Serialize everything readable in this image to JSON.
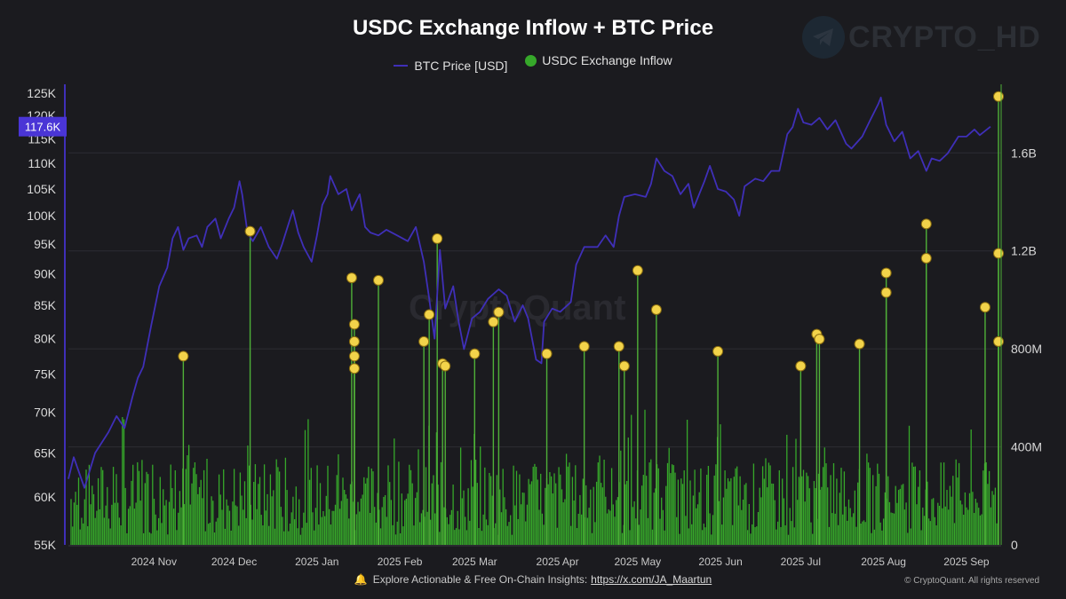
{
  "title": "USDC Exchange Inflow + BTC Price",
  "legend": {
    "btc_label": "BTC Price [USD]",
    "inflow_label": "USDC Exchange Inflow"
  },
  "watermark_text": "CRYPTO_HD",
  "cq_watermark": "CryptoQuant",
  "footer": {
    "text": "Explore Actionable & Free On-Chain Insights:",
    "link": "https://x.com/JA_Maartun",
    "copyright": "© CryptoQuant. All rights reserved"
  },
  "colors": {
    "btc_line": "#3f2fb8",
    "inflow_bars": "#36a82a",
    "highlight_dots": "#f2d34a",
    "current_price_badge": "#4a35d6"
  },
  "chart_data": {
    "type": "line",
    "x_axis": {
      "type": "date",
      "range": [
        "2024-10-14",
        "2025-09-28"
      ],
      "ticks": [
        "2024 Nov",
        "2024 Dec",
        "2025 Jan",
        "2025 Feb",
        "2025 Mar",
        "2025 Apr",
        "2025 May",
        "2025 Jun",
        "2025 Jul",
        "2025 Aug",
        "2025 Sep"
      ]
    },
    "y_left": {
      "label": "",
      "scale": "log",
      "range": [
        55000,
        127000
      ],
      "ticks": [
        "125K",
        "120K",
        "115K",
        "110K",
        "105K",
        "100K",
        "95K",
        "90K",
        "85K",
        "80K",
        "75K",
        "70K",
        "65K",
        "60K",
        "55K"
      ],
      "current_value_label": "117.6K"
    },
    "y_right": {
      "label": "",
      "range": [
        0,
        1.88
      ],
      "unit": "B",
      "ticks": [
        "1.6B",
        "1.2B",
        "800M",
        "400M",
        "0"
      ]
    },
    "series": [
      {
        "name": "BTC Price [USD]",
        "axis": "left",
        "points": [
          [
            "2024-10-14",
            62000
          ],
          [
            "2024-10-16",
            64500
          ],
          [
            "2024-10-20",
            61000
          ],
          [
            "2024-10-24",
            65000
          ],
          [
            "2024-10-29",
            67500
          ],
          [
            "2024-11-01",
            69500
          ],
          [
            "2024-11-04",
            68000
          ],
          [
            "2024-11-07",
            72000
          ],
          [
            "2024-11-09",
            74500
          ],
          [
            "2024-11-11",
            76000
          ],
          [
            "2024-11-14",
            82000
          ],
          [
            "2024-11-17",
            88000
          ],
          [
            "2024-11-20",
            91000
          ],
          [
            "2024-11-22",
            96000
          ],
          [
            "2024-11-24",
            98000
          ],
          [
            "2024-11-26",
            94000
          ],
          [
            "2024-11-28",
            96000
          ],
          [
            "2024-12-01",
            96500
          ],
          [
            "2024-12-03",
            94500
          ],
          [
            "2024-12-05",
            98000
          ],
          [
            "2024-12-08",
            99500
          ],
          [
            "2024-12-10",
            96000
          ],
          [
            "2024-12-13",
            99500
          ],
          [
            "2024-12-15",
            101500
          ],
          [
            "2024-12-17",
            106500
          ],
          [
            "2024-12-18",
            104000
          ],
          [
            "2024-12-20",
            97000
          ],
          [
            "2024-12-22",
            95500
          ],
          [
            "2024-12-25",
            98000
          ],
          [
            "2024-12-28",
            94500
          ],
          [
            "2024-12-31",
            92500
          ],
          [
            "2025-01-02",
            95000
          ],
          [
            "2025-01-04",
            98000
          ],
          [
            "2025-01-06",
            101000
          ],
          [
            "2025-01-08",
            97000
          ],
          [
            "2025-01-10",
            94500
          ],
          [
            "2025-01-13",
            92000
          ],
          [
            "2025-01-15",
            96500
          ],
          [
            "2025-01-17",
            102000
          ],
          [
            "2025-01-19",
            104000
          ],
          [
            "2025-01-20",
            107500
          ],
          [
            "2025-01-23",
            104000
          ],
          [
            "2025-01-26",
            105000
          ],
          [
            "2025-01-28",
            101000
          ],
          [
            "2025-01-31",
            104000
          ],
          [
            "2025-02-02",
            98000
          ],
          [
            "2025-02-04",
            97000
          ],
          [
            "2025-02-07",
            96500
          ],
          [
            "2025-02-10",
            97500
          ],
          [
            "2025-02-14",
            96500
          ],
          [
            "2025-02-18",
            95500
          ],
          [
            "2025-02-21",
            98000
          ],
          [
            "2025-02-24",
            92000
          ],
          [
            "2025-02-26",
            86000
          ],
          [
            "2025-02-28",
            80000
          ],
          [
            "2025-03-02",
            94000
          ],
          [
            "2025-03-04",
            84500
          ],
          [
            "2025-03-07",
            88000
          ],
          [
            "2025-03-09",
            82500
          ],
          [
            "2025-03-11",
            78500
          ],
          [
            "2025-03-14",
            83000
          ],
          [
            "2025-03-17",
            84000
          ],
          [
            "2025-03-20",
            86000
          ],
          [
            "2025-03-24",
            87500
          ],
          [
            "2025-03-27",
            86500
          ],
          [
            "2025-03-30",
            82500
          ],
          [
            "2025-04-02",
            85000
          ],
          [
            "2025-04-04",
            83000
          ],
          [
            "2025-04-07",
            77000
          ],
          [
            "2025-04-09",
            76500
          ],
          [
            "2025-04-10",
            82500
          ],
          [
            "2025-04-13",
            84500
          ],
          [
            "2025-04-16",
            84000
          ],
          [
            "2025-04-20",
            85500
          ],
          [
            "2025-04-22",
            91500
          ],
          [
            "2025-04-25",
            94500
          ],
          [
            "2025-04-30",
            94500
          ],
          [
            "2025-05-03",
            96500
          ],
          [
            "2025-05-06",
            94500
          ],
          [
            "2025-05-08",
            100000
          ],
          [
            "2025-05-10",
            103500
          ],
          [
            "2025-05-14",
            104000
          ],
          [
            "2025-05-18",
            103500
          ],
          [
            "2025-05-20",
            106000
          ],
          [
            "2025-05-22",
            111000
          ],
          [
            "2025-05-25",
            108500
          ],
          [
            "2025-05-28",
            107500
          ],
          [
            "2025-05-31",
            104000
          ],
          [
            "2025-06-03",
            106000
          ],
          [
            "2025-06-05",
            101500
          ],
          [
            "2025-06-09",
            106500
          ],
          [
            "2025-06-11",
            109500
          ],
          [
            "2025-06-14",
            105000
          ],
          [
            "2025-06-17",
            104500
          ],
          [
            "2025-06-20",
            103000
          ],
          [
            "2025-06-22",
            100000
          ],
          [
            "2025-06-24",
            105500
          ],
          [
            "2025-06-28",
            107000
          ],
          [
            "2025-07-01",
            106500
          ],
          [
            "2025-07-04",
            108500
          ],
          [
            "2025-07-07",
            108500
          ],
          [
            "2025-07-10",
            116000
          ],
          [
            "2025-07-12",
            117500
          ],
          [
            "2025-07-14",
            121500
          ],
          [
            "2025-07-16",
            118500
          ],
          [
            "2025-07-19",
            118000
          ],
          [
            "2025-07-22",
            119500
          ],
          [
            "2025-07-25",
            117000
          ],
          [
            "2025-07-28",
            119000
          ],
          [
            "2025-08-01",
            114000
          ],
          [
            "2025-08-03",
            113000
          ],
          [
            "2025-08-07",
            115500
          ],
          [
            "2025-08-10",
            119000
          ],
          [
            "2025-08-13",
            122500
          ],
          [
            "2025-08-14",
            124000
          ],
          [
            "2025-08-16",
            118000
          ],
          [
            "2025-08-19",
            114500
          ],
          [
            "2025-08-22",
            116500
          ],
          [
            "2025-08-25",
            111000
          ],
          [
            "2025-08-28",
            112500
          ],
          [
            "2025-08-31",
            108500
          ],
          [
            "2025-09-02",
            111000
          ],
          [
            "2025-09-05",
            110500
          ],
          [
            "2025-09-08",
            112000
          ],
          [
            "2025-09-12",
            115500
          ],
          [
            "2025-09-15",
            115500
          ],
          [
            "2025-09-18",
            117000
          ],
          [
            "2025-09-20",
            115800
          ],
          [
            "2025-09-24",
            117600
          ]
        ]
      },
      {
        "name": "USDC Exchange Inflow",
        "axis": "right",
        "note_values_in": "B",
        "highlighted_spikes": [
          [
            "2024-11-26",
            0.77
          ],
          [
            "2024-12-21",
            1.28
          ],
          [
            "2025-01-28",
            1.09
          ],
          [
            "2025-01-29",
            0.9
          ],
          [
            "2025-01-29",
            0.83
          ],
          [
            "2025-01-29",
            0.77
          ],
          [
            "2025-01-29",
            0.72
          ],
          [
            "2025-02-07",
            1.08
          ],
          [
            "2025-02-24",
            0.83
          ],
          [
            "2025-02-26",
            0.94
          ],
          [
            "2025-03-01",
            1.25
          ],
          [
            "2025-03-03",
            0.74
          ],
          [
            "2025-03-04",
            0.73
          ],
          [
            "2025-03-15",
            0.78
          ],
          [
            "2025-03-22",
            0.91
          ],
          [
            "2025-03-24",
            0.95
          ],
          [
            "2025-04-11",
            0.78
          ],
          [
            "2025-04-25",
            0.81
          ],
          [
            "2025-05-08",
            0.81
          ],
          [
            "2025-05-10",
            0.73
          ],
          [
            "2025-05-15",
            1.12
          ],
          [
            "2025-05-22",
            0.96
          ],
          [
            "2025-06-14",
            0.79
          ],
          [
            "2025-07-15",
            0.73
          ],
          [
            "2025-07-21",
            0.86
          ],
          [
            "2025-07-22",
            0.84
          ],
          [
            "2025-08-06",
            0.82
          ],
          [
            "2025-08-16",
            1.11
          ],
          [
            "2025-08-16",
            1.03
          ],
          [
            "2025-08-31",
            1.31
          ],
          [
            "2025-08-31",
            1.17
          ],
          [
            "2025-09-22",
            0.97
          ],
          [
            "2025-09-27",
            1.19
          ],
          [
            "2025-09-27",
            0.83
          ],
          [
            "2025-09-27",
            1.83
          ]
        ],
        "typical_daily_range": [
          0.05,
          0.6
        ]
      }
    ]
  }
}
